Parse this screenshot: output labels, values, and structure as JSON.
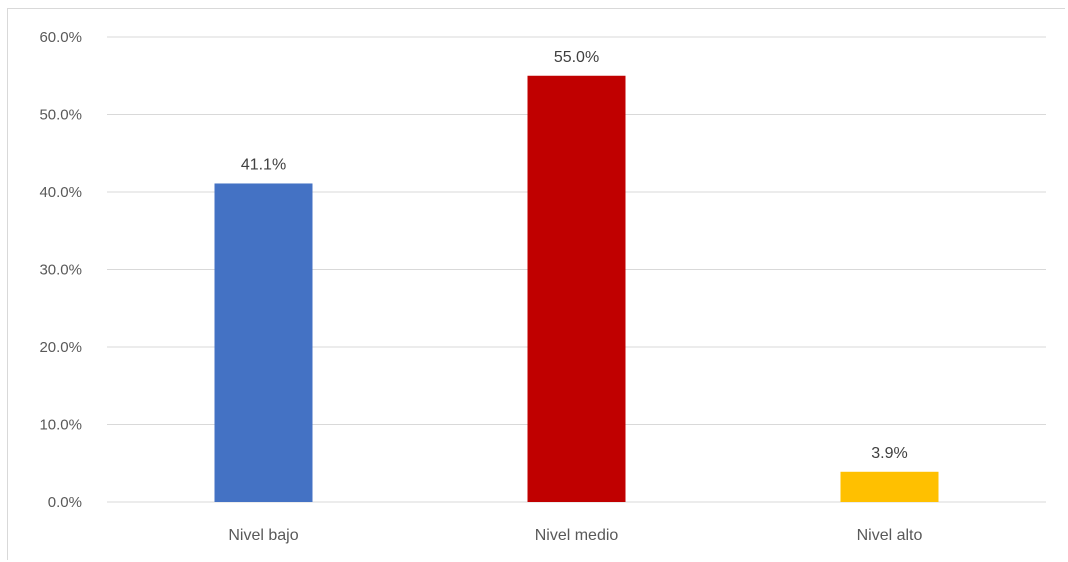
{
  "chart_data": {
    "type": "bar",
    "title": "",
    "xlabel": "",
    "ylabel": "",
    "categories": [
      "Nivel bajo",
      "Nivel medio",
      "Nivel alto"
    ],
    "values": [
      41.1,
      55.0,
      3.9
    ],
    "data_labels": [
      "41.1%",
      "55.0%",
      "3.9%"
    ],
    "colors": [
      "#4472C4",
      "#C00000",
      "#FFC000"
    ],
    "ylim": [
      0,
      60
    ],
    "yticks": [
      0,
      10,
      20,
      30,
      40,
      50,
      60
    ],
    "ytick_labels": [
      "0.0%",
      "10.0%",
      "20.0%",
      "30.0%",
      "40.0%",
      "50.0%",
      "60.0%"
    ],
    "grid": true,
    "legend": "none"
  }
}
